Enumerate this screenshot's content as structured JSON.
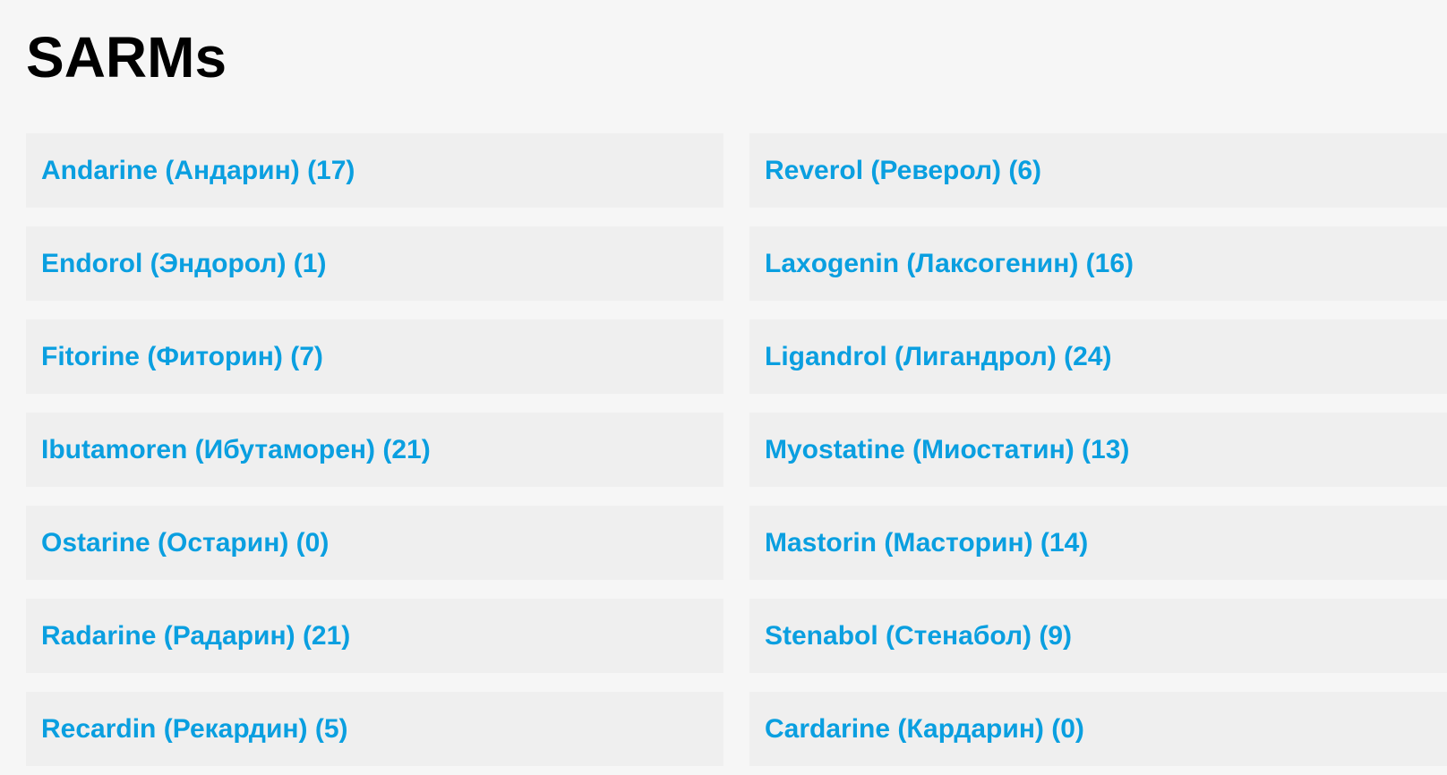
{
  "title": "SARMs",
  "link_color": "#0a9fe0",
  "categories": [
    "Andarine (Андарин) (17)",
    "Reverol (Реверол) (6)",
    "Endorol (Эндорол) (1)",
    "Laxogenin (Лаксогенин) (16)",
    "Fitorine (Фиторин) (7)",
    "Ligandrol (Лигандрол) (24)",
    "Ibutamoren (Ибутаморен) (21)",
    "Myostatine (Миостатин) (13)",
    "Ostarine (Остарин) (0)",
    "Mastorin (Масторин) (14)",
    "Radarine (Радарин) (21)",
    "Stenabol (Стенабол) (9)",
    "Recardin (Рекардин) (5)",
    "Cardarine (Кардарин) (0)"
  ]
}
